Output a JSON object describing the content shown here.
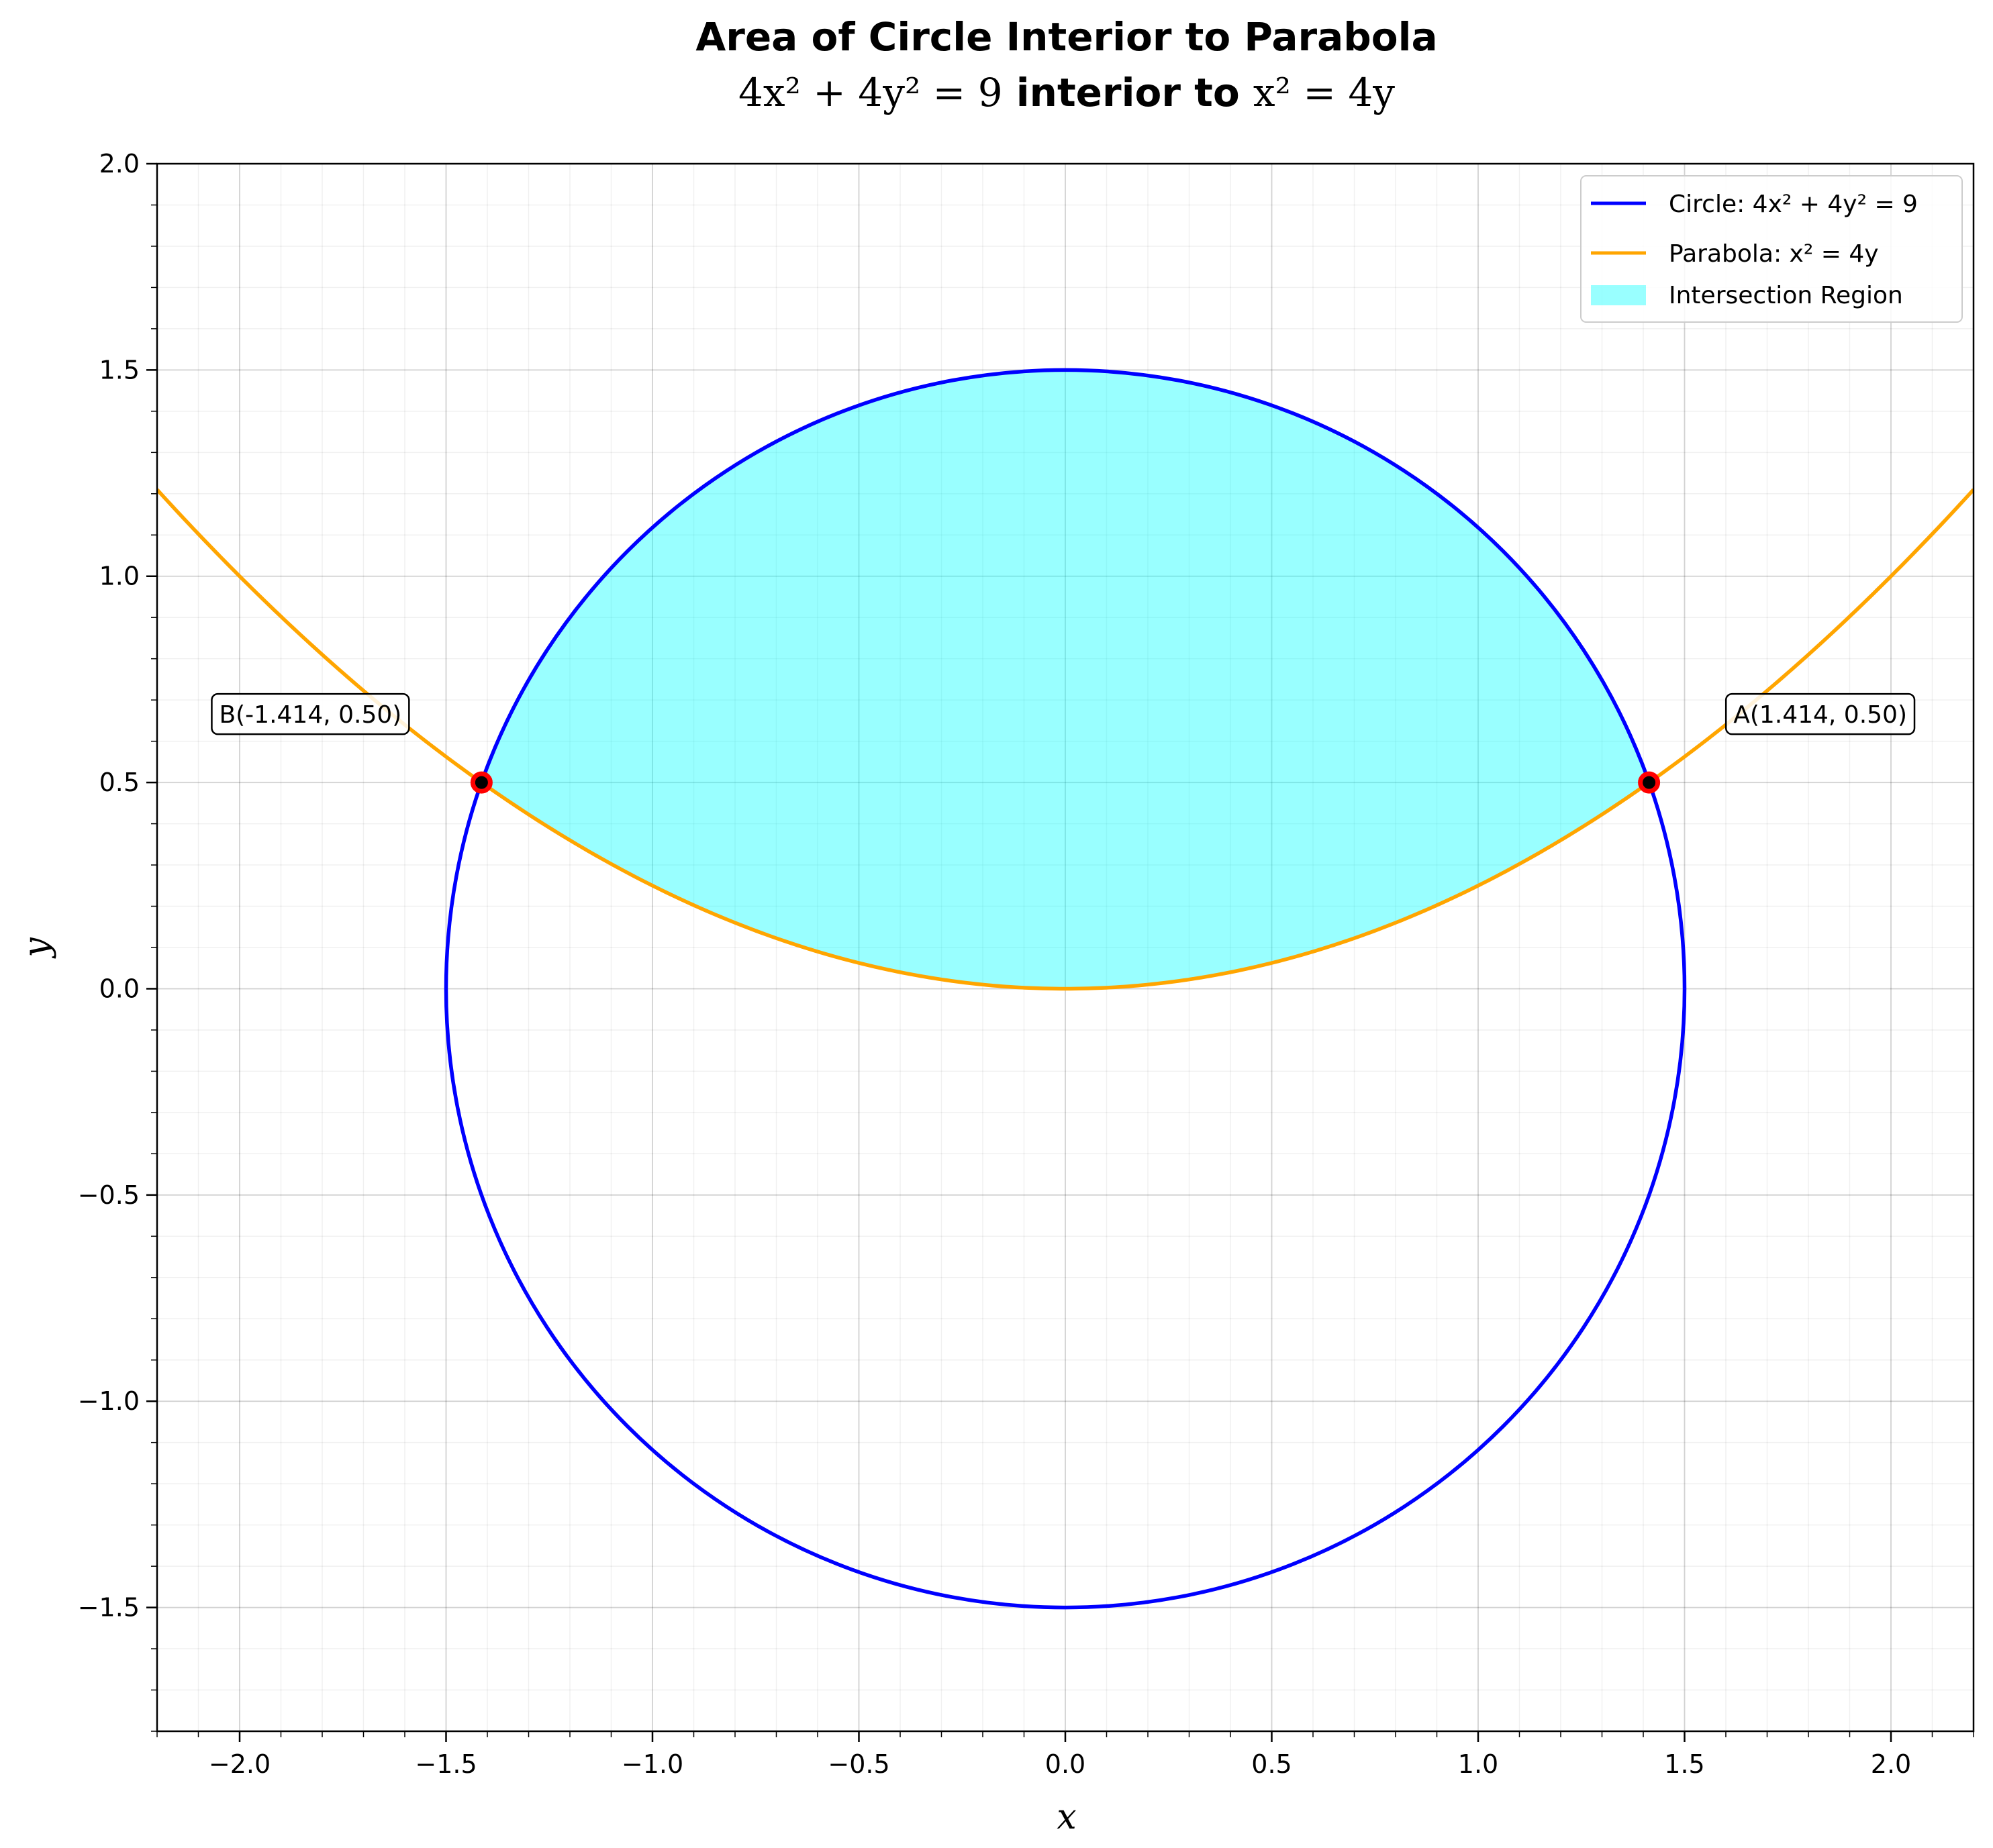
{
  "chart_data": {
    "type": "line",
    "title": "Area of Circle Interior to Parabola",
    "subtitle": {
      "prefix": "4x² + 4y² = 9",
      "middle": " interior to ",
      "suffix": "x² = 4y"
    },
    "xlabel": "x",
    "ylabel": "y",
    "xlim": [
      -2.2,
      2.2
    ],
    "ylim": [
      -1.8,
      2.0
    ],
    "x_ticks": [
      -2.0,
      -1.5,
      -1.0,
      -0.5,
      0.0,
      0.5,
      1.0,
      1.5,
      2.0
    ],
    "y_ticks": [
      -1.5,
      -1.0,
      -0.5,
      0.0,
      0.5,
      1.0,
      1.5,
      2.0
    ],
    "x_tick_labels": [
      "−2.0",
      "−1.5",
      "−1.0",
      "−0.5",
      "0.0",
      "0.5",
      "1.0",
      "1.5",
      "2.0"
    ],
    "y_tick_labels": [
      "−1.5",
      "−1.0",
      "−0.5",
      "0.0",
      "0.5",
      "1.0",
      "1.5",
      "2.0"
    ],
    "grid": true,
    "minor_grid": true,
    "legend_position": "top-right",
    "series": [
      {
        "name": "Circle: 4x² + 4y² = 9",
        "kind": "circle",
        "center": [
          0,
          0
        ],
        "radius": 1.5,
        "color": "#0000ff"
      },
      {
        "name": "Parabola: x² = 4y",
        "kind": "parabola",
        "coefficient": 0.25,
        "color": "#ffa500"
      },
      {
        "name": "Intersection Region",
        "kind": "fill",
        "x_range": [
          -1.414,
          1.414
        ],
        "color": "#00ffff",
        "opacity": 0.4
      }
    ],
    "points": [
      {
        "label": "A(1.414, 0.50)",
        "x": 1.414,
        "y": 0.5,
        "label_side": "right"
      },
      {
        "label": "B(-1.414, 0.50)",
        "x": -1.414,
        "y": 0.5,
        "label_side": "left"
      }
    ],
    "colors": {
      "circle": "#0000ff",
      "parabola": "#ffa500",
      "fill": "#00ffff",
      "point_edge": "#ff0000",
      "point_face": "#000000"
    }
  }
}
